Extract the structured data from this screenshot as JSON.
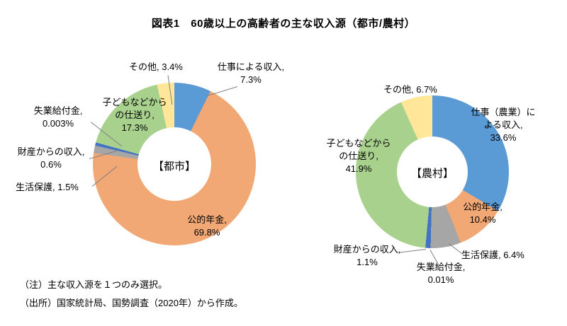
{
  "title": "図表1　60歳以上の高齢者の主な収入源（都市/農村）",
  "notes": {
    "note1": "（注）主な収入源を１つのみ選択。",
    "note2": "（出所）国家統計局、国勢調査（2020年）から作成。"
  },
  "chart_data": [
    {
      "type": "pie",
      "subtype": "donut",
      "center_label": "【都市】",
      "slices": [
        {
          "label": "仕事による収入",
          "value": 7.3,
          "color": "#5B9BD5",
          "display": [
            "仕事による収入,",
            "7.3%"
          ]
        },
        {
          "label": "公的年金",
          "value": 69.8,
          "color": "#F2A875",
          "display": [
            "公的年金,",
            "69.8%"
          ]
        },
        {
          "label": "生活保護",
          "value": 1.5,
          "color": "#A6A6A6",
          "display": [
            "生活保護, 1.5%"
          ]
        },
        {
          "label": "失業給付金",
          "value": 0.003,
          "color": "#FFC000",
          "display": [
            "失業給付金,",
            "0.003%"
          ]
        },
        {
          "label": "財産からの収入",
          "value": 0.6,
          "color": "#4472C4",
          "display": [
            "財産からの収入,",
            "0.6%"
          ]
        },
        {
          "label": "子どもなどからの仕送り",
          "value": 17.3,
          "color": "#A9D18E",
          "display": [
            "子どもなどから",
            "の仕送り,",
            "17.3%"
          ]
        },
        {
          "label": "その他",
          "value": 3.4,
          "color": "#FFE699",
          "display": [
            "その他, 3.4%"
          ]
        }
      ]
    },
    {
      "type": "pie",
      "subtype": "donut",
      "center_label": "【農村】",
      "slices": [
        {
          "label": "仕事（農業）による収入",
          "value": 33.6,
          "color": "#5B9BD5",
          "display": [
            "仕事（農業）に",
            "よる収入,",
            "33.6%"
          ]
        },
        {
          "label": "公的年金",
          "value": 10.4,
          "color": "#F2A875",
          "display": [
            "公的年金,",
            "10.4%"
          ]
        },
        {
          "label": "生活保護",
          "value": 6.4,
          "color": "#A6A6A6",
          "display": [
            "生活保護, 6.4%"
          ]
        },
        {
          "label": "失業給付金",
          "value": 0.01,
          "color": "#FFC000",
          "display": [
            "失業給付金,",
            "0.01%"
          ]
        },
        {
          "label": "財産からの収入",
          "value": 1.1,
          "color": "#4472C4",
          "display": [
            "財産からの収入,",
            "1.1%"
          ]
        },
        {
          "label": "子どもなどからの仕送り",
          "value": 41.9,
          "color": "#A9D18E",
          "display": [
            "子どもなどから",
            "の仕送り,",
            "41.9%"
          ]
        },
        {
          "label": "その他",
          "value": 6.7,
          "color": "#FFE699",
          "display": [
            "その他, 6.7%"
          ]
        }
      ]
    }
  ]
}
